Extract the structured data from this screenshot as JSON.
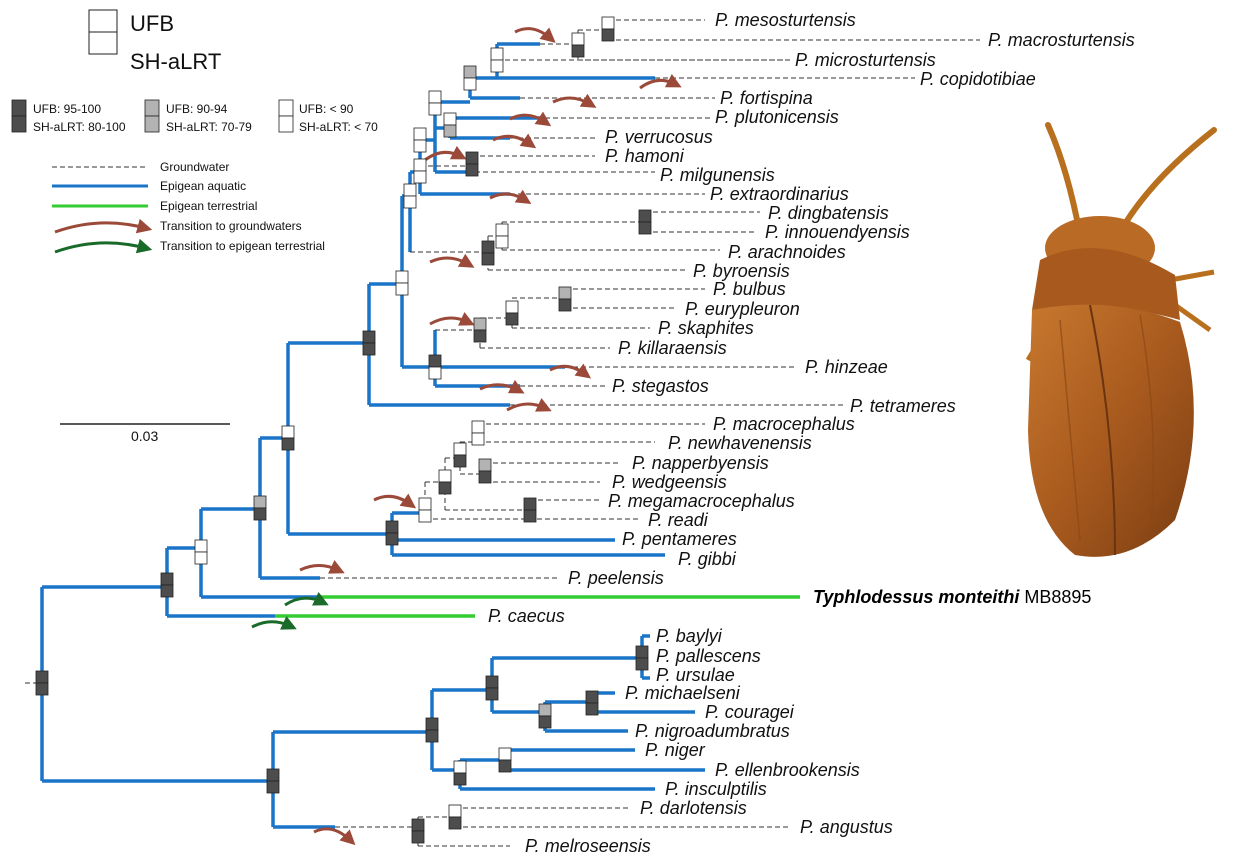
{
  "legend": {
    "top_box": "UFB",
    "bottom_box": "SH-aLRT",
    "support_classes": [
      {
        "ufb": "UFB: 95-100",
        "shalrt": "SH-aLRT: 80-100"
      },
      {
        "ufb": "UFB: 90-94",
        "shalrt": "SH-aLRT: 70-79"
      },
      {
        "ufb": "UFB: < 90",
        "shalrt": "SH-aLRT: < 70"
      }
    ],
    "lines": [
      {
        "label": "Groundwater",
        "color": "#333333"
      },
      {
        "label": "Epigean aquatic",
        "color": "#1a75c9"
      },
      {
        "label": "Epigean terrestrial",
        "color": "#33cc33"
      },
      {
        "label": "Transition to groundwaters",
        "color": "#9b4a3a"
      },
      {
        "label": "Transition to epigean terrestrial",
        "color": "#1a6b2a"
      }
    ]
  },
  "scale_bar": {
    "label": "0.03"
  },
  "colors": {
    "dark": "#4d4d4d",
    "mid": "#b3b3b3",
    "light": "#ffffff",
    "aquatic": "#1a75c9",
    "terrestrial": "#33cc33",
    "ground": "#333333"
  },
  "taxa": {
    "mesosturtensis": "P. mesosturtensis",
    "macrosturtensis": "P. macrosturtensis",
    "microsturtensis": "P. microsturtensis",
    "copidotibiae": "P. copidotibiae",
    "fortispina": "P. fortispina",
    "plutonicensis": "P. plutonicensis",
    "verrucosus": "P. verrucosus",
    "hamoni": "P. hamoni",
    "milgunensis": "P. milgunensis",
    "extraordinarius": "P. extraordinarius",
    "dingbatensis": "P. dingbatensis",
    "innouendyensis": "P. innouendyensis",
    "arachnoides": "P. arachnoides",
    "byroensis": "P. byroensis",
    "bulbus": "P. bulbus",
    "eurypleuron": "P. eurypleuron",
    "skaphites": "P. skaphites",
    "killaraensis": "P. killaraensis",
    "hinzeae": "P. hinzeae",
    "stegastos": "P. stegastos",
    "tetrameres": "P. tetrameres",
    "macrocephalus": "P. macrocephalus",
    "newhavenensis": "P. newhavenensis",
    "napperbyensis": "P. napperbyensis",
    "wedgeensis": "P. wedgeensis",
    "megamacrocephalus": "P. megamacrocephalus",
    "readi": "P. readi",
    "pentameres": "P. pentameres",
    "gibbi": "P. gibbi",
    "peelensis": "P. peelensis",
    "typhlo_name": "Typhlodessus monteithi",
    "typhlo_code": "MB8895",
    "caecus": "P. caecus",
    "baylyi": "P. baylyi",
    "pallescens": "P. pallescens",
    "ursulae": "P. ursulae",
    "michaelseni": "P. michaelseni",
    "couragei": "P. couragei",
    "nigroadumbratus": "P. nigroadumbratus",
    "niger": "P. niger",
    "ellenbrookensis": "P. ellenbrookensis",
    "insculptilis": "P. insculptilis",
    "darlotensis": "P. darlotensis",
    "angustus": "P. angustus",
    "melroseensis": "P. melroseensis"
  }
}
